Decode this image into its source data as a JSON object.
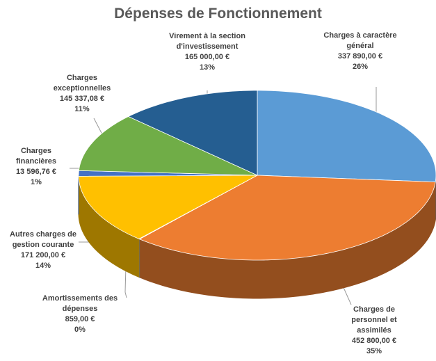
{
  "chart_data": {
    "type": "pie3d",
    "title": "Dépenses de Fonctionnement",
    "categories": [
      "Charges à caractère général",
      "Charges de personnel et assimilés",
      "Amortissements des dépenses",
      "Autres charges de gestion courante",
      "Charges financières",
      "Charges exceptionnelles",
      "Virement à la section d'investissement"
    ],
    "values": [
      337890,
      452800,
      859,
      171200,
      13596.76,
      145337.08,
      165000
    ],
    "value_labels": [
      "337 890,00 €",
      "452 800,00 €",
      "859,00 €",
      "171 200,00 €",
      "13 596,76 €",
      "145 337,08 €",
      "165 000,00 €"
    ],
    "percent_labels": [
      "26%",
      "35%",
      "0%",
      "14%",
      "1%",
      "11%",
      "13%"
    ],
    "colors": [
      "#5b9bd5",
      "#ed7d31",
      "#a5a5a5",
      "#ffc000",
      "#4472c4",
      "#70ad47",
      "#255e91"
    ]
  }
}
